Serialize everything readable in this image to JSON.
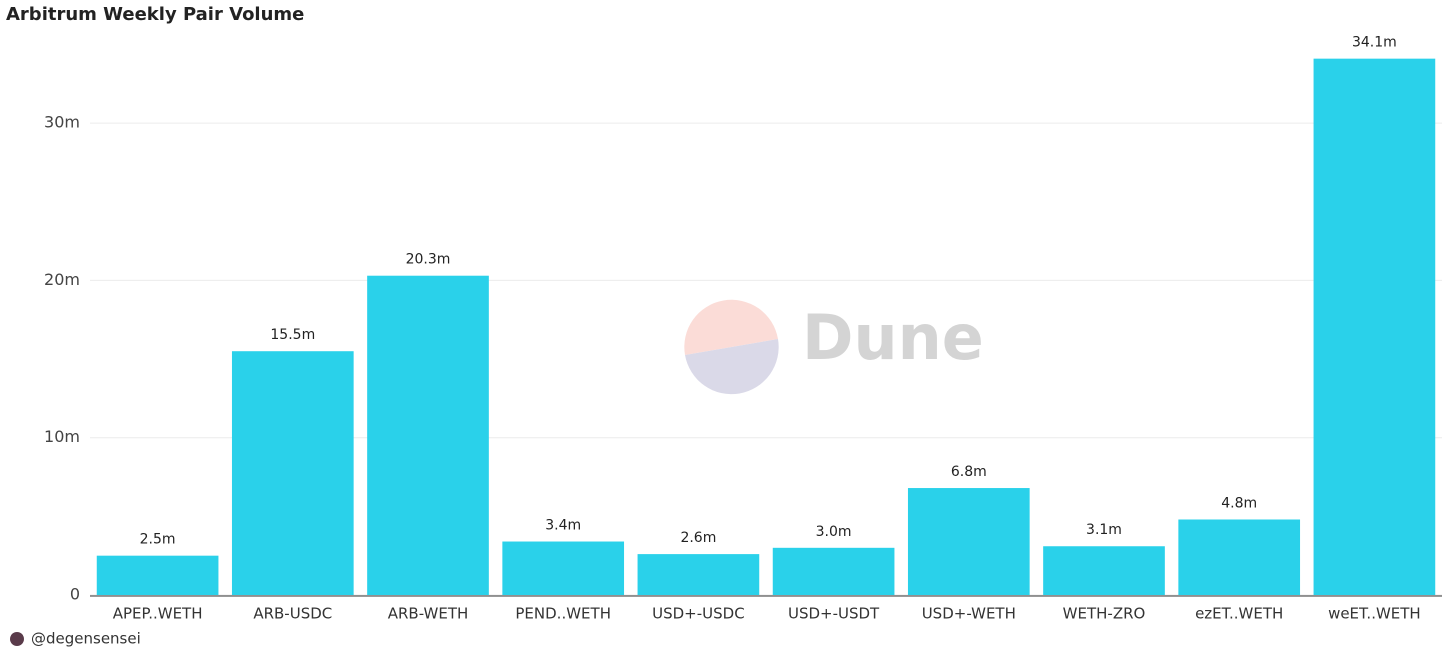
{
  "chart_data": {
    "type": "bar",
    "title": "Arbitrum Weekly Pair Volume",
    "categories": [
      "APEP..WETH",
      "ARB-USDC",
      "ARB-WETH",
      "PEND..WETH",
      "USD+-USDC",
      "USD+-USDT",
      "USD+-WETH",
      "WETH-ZRO",
      "ezET..WETH",
      "weET..WETH"
    ],
    "values": [
      2.5,
      15.5,
      20.3,
      3.4,
      2.6,
      3.0,
      6.8,
      3.1,
      4.8,
      34.1
    ],
    "value_labels": [
      "2.5m",
      "15.5m",
      "20.3m",
      "3.4m",
      "2.6m",
      "3.0m",
      "6.8m",
      "3.1m",
      "4.8m",
      "34.1m"
    ],
    "color": "#2ad1ea",
    "ylim": [
      0,
      35
    ],
    "yticks": [
      0,
      {
        "value": 10,
        "label": "10m"
      },
      {
        "value": 20,
        "label": "20m"
      },
      {
        "value": 30,
        "label": "30m"
      }
    ],
    "grid": true,
    "watermark": "Dune",
    "footer": "@degensensei"
  }
}
